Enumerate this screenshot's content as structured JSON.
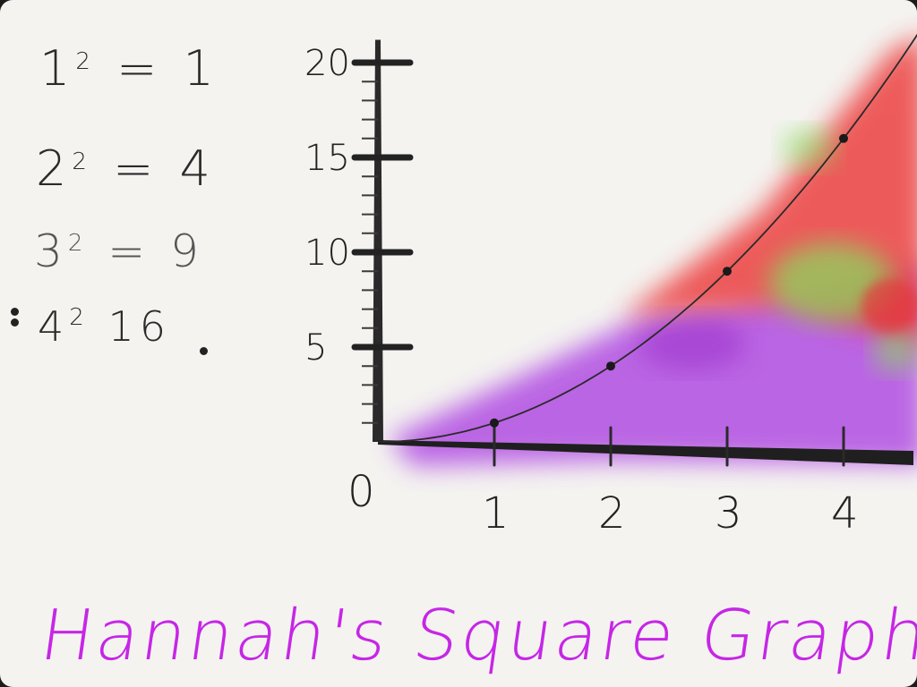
{
  "equations": [
    {
      "base": "1",
      "exp": "2",
      "result": "1"
    },
    {
      "base": "2",
      "exp": "2",
      "result": "4"
    },
    {
      "base": "3",
      "exp": "2",
      "result": "9"
    },
    {
      "base": "4",
      "exp": "2",
      "result": "16"
    }
  ],
  "chart_data": {
    "type": "line",
    "title": "Hannah's Square Graph",
    "x": [
      0,
      1,
      2,
      3,
      4
    ],
    "series": [
      {
        "values": [
          0,
          1,
          4,
          9,
          16
        ]
      }
    ],
    "xlim": [
      0,
      4.6
    ],
    "ylim": [
      0,
      20
    ],
    "x_ticks": [
      {
        "value": 0,
        "label": "0"
      },
      {
        "value": 1,
        "label": "1"
      },
      {
        "value": 2,
        "label": "2"
      },
      {
        "value": 3,
        "label": "3"
      },
      {
        "value": 4,
        "label": "4"
      }
    ],
    "y_ticks": [
      {
        "value": 5,
        "label": "5"
      },
      {
        "value": 10,
        "label": "10"
      },
      {
        "value": 15,
        "label": "15"
      },
      {
        "value": 20,
        "label": "20"
      }
    ],
    "grid": false,
    "colors": {
      "line": "#2a2a2a",
      "purple": "#b14ee2",
      "red": "#ec4140",
      "green": "#86e05f",
      "title": "#c626e6"
    }
  }
}
